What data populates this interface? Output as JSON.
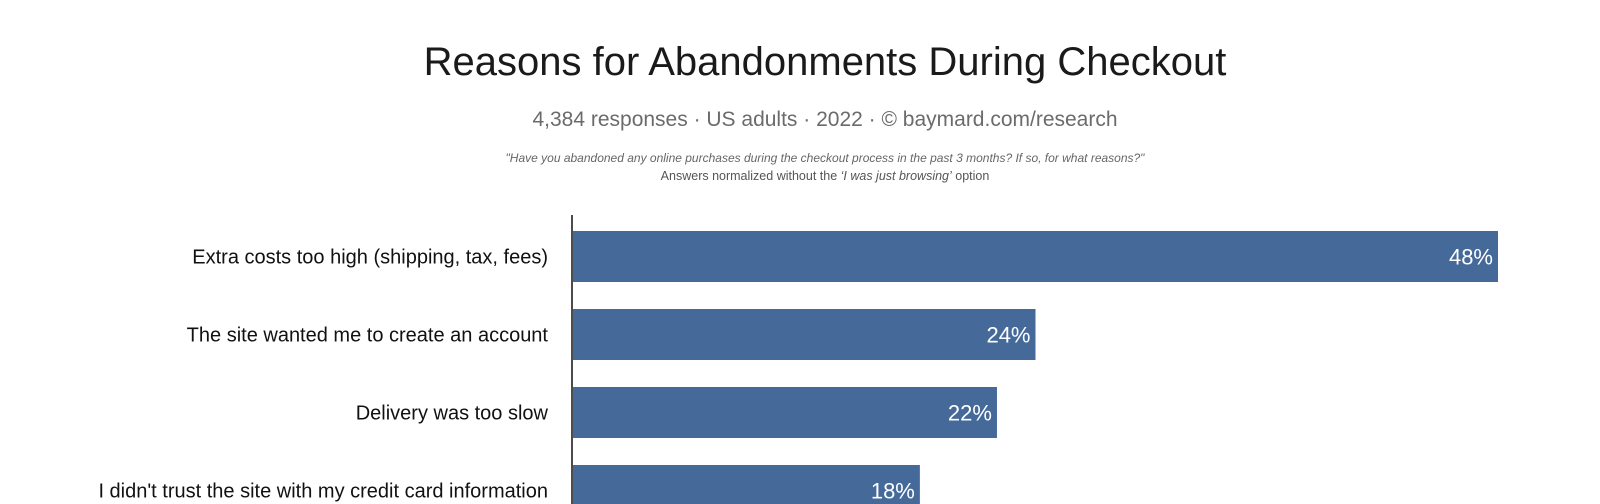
{
  "chart_data": {
    "type": "bar",
    "orientation": "horizontal",
    "title": "Reasons for Abandonments During Checkout",
    "subtitle": "4,384 responses  ·  US adults  ·  2022  ·  ©  baymard.com/research",
    "question": "\"Have you abandoned any online purchases during the checkout process in the past 3 months? If so, for what reasons?\"",
    "note_prefix": "Answers normalized without the ",
    "note_italic": "‘I was just browsing’",
    "note_suffix": " option",
    "categories": [
      "Extra costs too high (shipping, tax, fees)",
      "The site wanted me to create an account",
      "Delivery was too slow",
      "I didn't trust the site with my credit card information"
    ],
    "values": [
      48,
      24,
      22,
      18
    ],
    "value_labels": [
      "48%",
      "24%",
      "22%",
      "18%"
    ],
    "xlim": [
      0,
      48
    ],
    "bar_color": "#456a99"
  }
}
